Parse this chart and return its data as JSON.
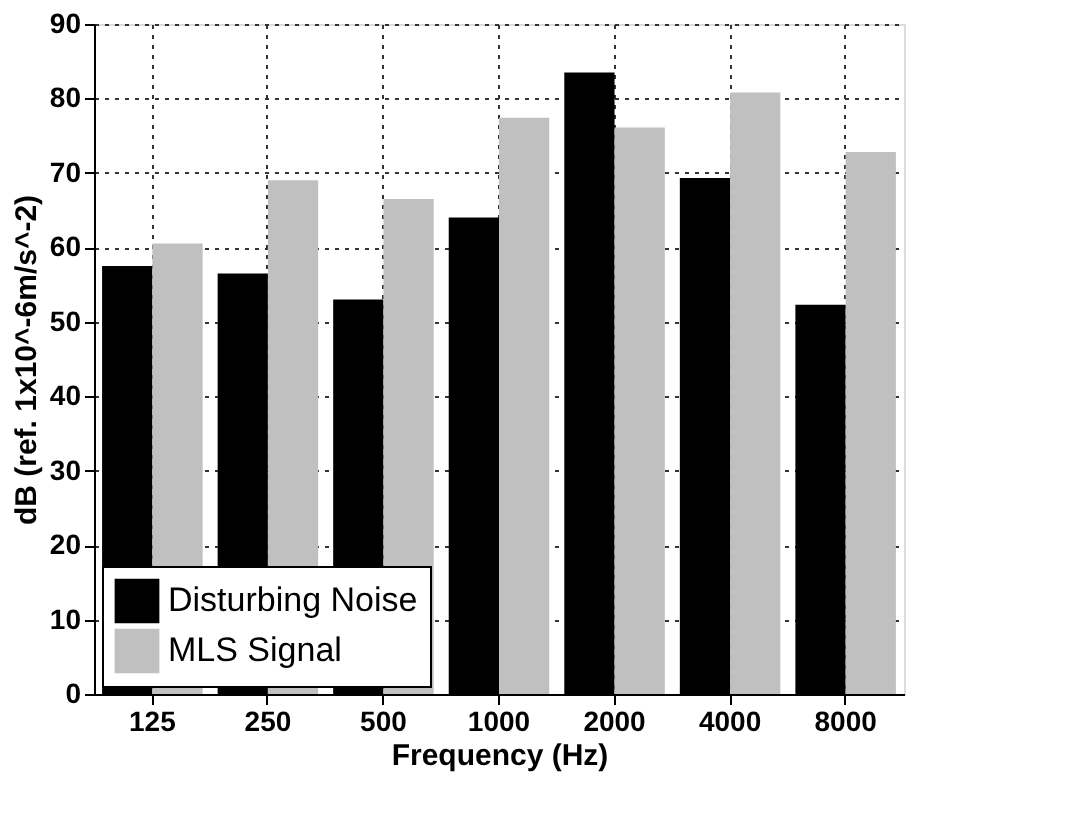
{
  "chart_data": {
    "type": "bar",
    "xlabel": "Frequency (Hz)",
    "ylabel": "dB (ref. 1x10^-6m/s^-2)",
    "categories": [
      "125",
      "250",
      "500",
      "1000",
      "2000",
      "4000",
      "8000"
    ],
    "series": [
      {
        "name": "Disturbing Noise",
        "color": "#000000",
        "values": [
          57.5,
          56.5,
          53,
          64,
          83.5,
          69.3,
          52.3
        ]
      },
      {
        "name": "MLS Signal",
        "color": "#c0c0c0",
        "values": [
          60.5,
          69,
          66.5,
          77.4,
          76.1,
          80.8,
          72.8
        ]
      }
    ],
    "ylim": [
      0,
      90
    ],
    "yticks": [
      0,
      10,
      20,
      30,
      40,
      50,
      60,
      70,
      80,
      90
    ],
    "grid": true,
    "legend": "bottom left"
  }
}
